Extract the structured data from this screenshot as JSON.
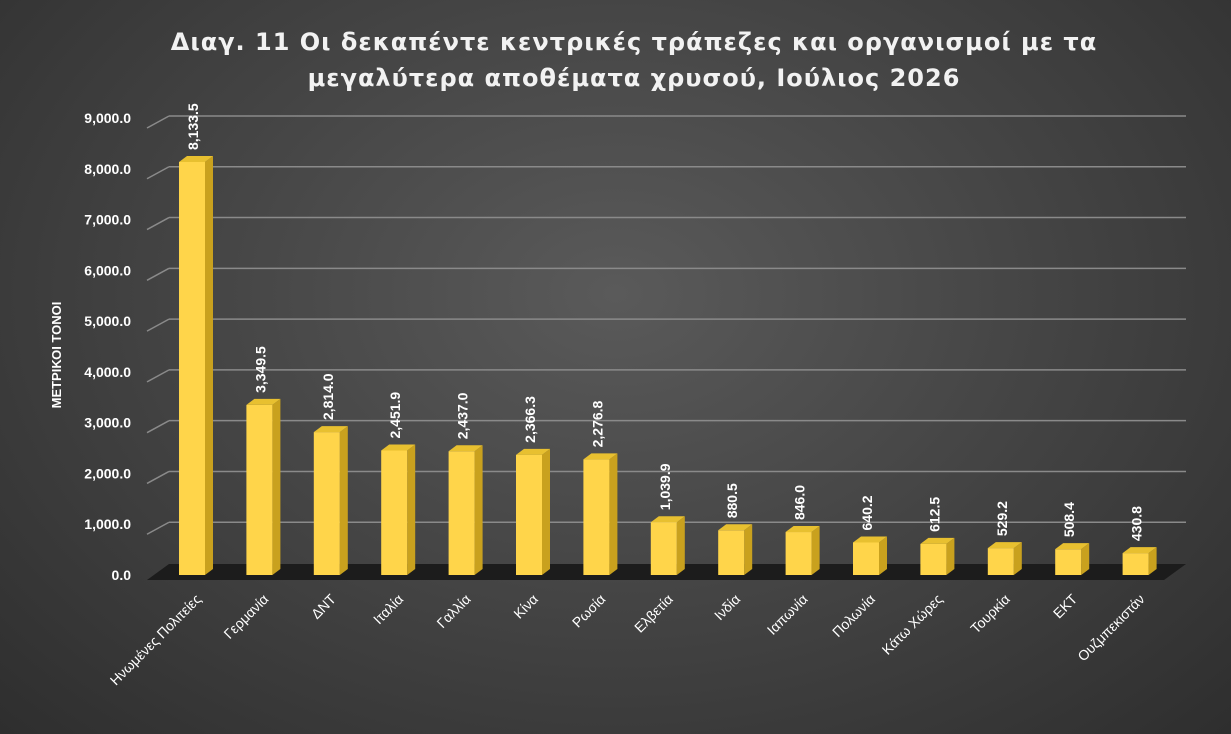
{
  "chart_data": {
    "type": "bar",
    "title_lines": [
      "Διαγ. 11  Οι δεκαπέντε κεντρικές τράπεζες και οργανισμοί με τα",
      "μεγαλύτερα αποθέματα χρυσού, Ιούλιος 2026"
    ],
    "ylabel": "ΜΕΤΡΙΚΟΙ ΤΟΝΟΙ",
    "xlabel": "",
    "ylim": [
      0,
      9000
    ],
    "yticks": [
      "0.0",
      "1,000.0",
      "2,000.0",
      "3,000.0",
      "4,000.0",
      "5,000.0",
      "6,000.0",
      "7,000.0",
      "8,000.0",
      "9,000.0"
    ],
    "categories": [
      "Ηνωμένες Πολιτείες",
      "Γερμανία",
      "ΔΝΤ",
      "Ιταλία",
      "Γαλλία",
      "Κίνα",
      "Ρωσία",
      "Ελβετία",
      "Ινδία",
      "Ιαπωνία",
      "Πολωνία",
      "Κάτω Χώρες",
      "Τουρκία",
      "ΕΚΤ",
      "Ουζμπεκιστάν"
    ],
    "values": [
      8133.5,
      3349.5,
      2814.0,
      2451.9,
      2437.0,
      2366.3,
      2276.8,
      1039.9,
      880.5,
      846.0,
      640.2,
      612.5,
      529.2,
      508.4,
      430.8
    ],
    "value_labels": [
      "8,133.5",
      "3,349.5",
      "2,814.0",
      "2,451.9",
      "2,437.0",
      "2,366.3",
      "2,276.8",
      "1,039.9",
      "880.5",
      "846.0",
      "640.2",
      "612.5",
      "529.2",
      "508.4",
      "430.8"
    ],
    "grid": true,
    "colors": {
      "bar_front": "#ffd54a",
      "bar_side": "#c9a11e",
      "bar_top": "#e8c030",
      "gridline": "#8a8a8a",
      "floor": "#1c1c1c"
    }
  }
}
